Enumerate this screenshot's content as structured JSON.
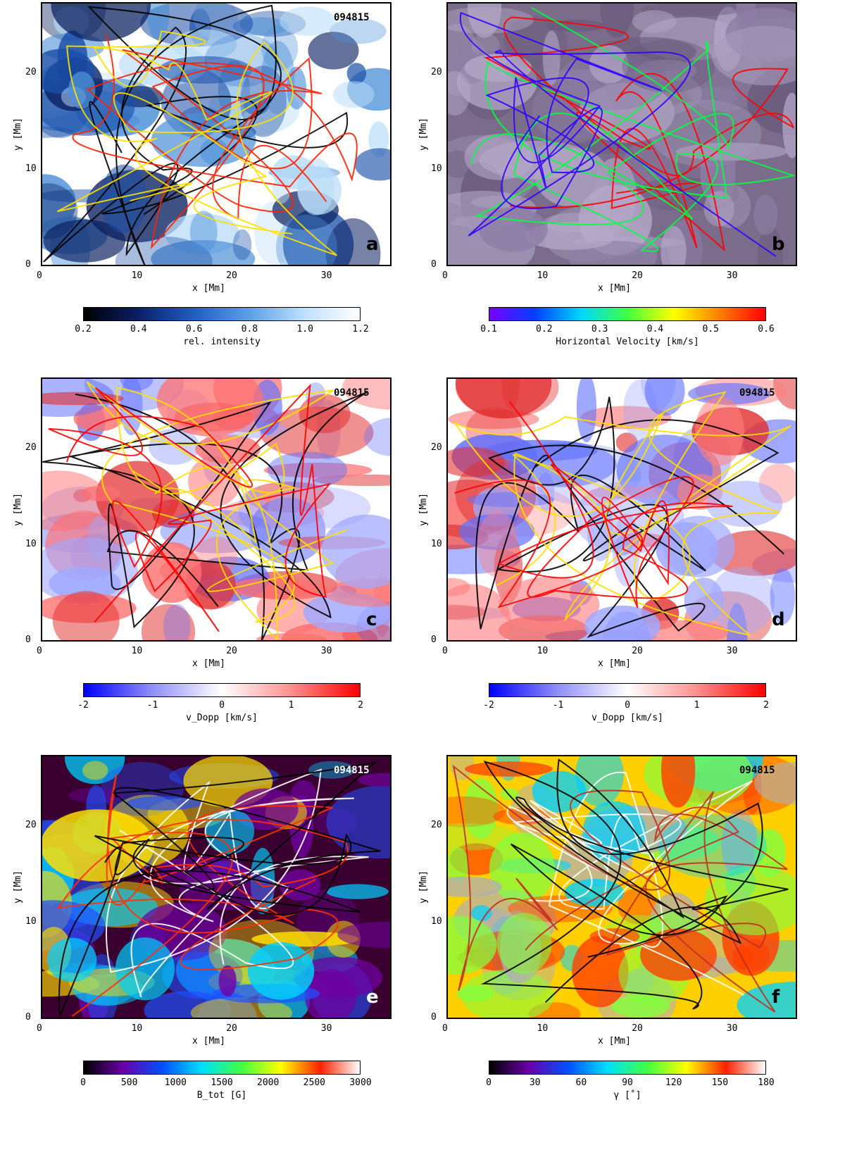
{
  "stamp": "094815",
  "panels": [
    {
      "letter": "a",
      "stamp": "094815",
      "xlabel": "x [Mm]",
      "ylabel": "y [Mm]",
      "xticks": [
        "0",
        "10",
        "20",
        "30"
      ],
      "yticks": [
        "0",
        "10",
        "20"
      ],
      "colorbar": {
        "label": "rel. intensity",
        "ticks": [
          "0.2",
          "0.4",
          "0.6",
          "0.8",
          "1.0",
          "1.2"
        ],
        "colors": [
          "#000000",
          "#0b1f6b",
          "#1f5fbf",
          "#5aa0e8",
          "#bfe0ff",
          "#ffffff"
        ]
      }
    },
    {
      "letter": "b",
      "stamp": "",
      "xlabel": "x  [Mm]",
      "ylabel": "y [Mm]",
      "xticks": [
        "0",
        "10",
        "20",
        "30"
      ],
      "yticks": [
        "0",
        "10",
        "20"
      ],
      "colorbar": {
        "label": "Horizontal Velocity   [km/s]",
        "ticks": [
          "0.1",
          "0.2",
          "0.3",
          "0.4",
          "0.5",
          "0.6"
        ],
        "colors": [
          "#7a00ff",
          "#0040ff",
          "#00d8ff",
          "#40ff40",
          "#ffff00",
          "#ff8000",
          "#ff0000"
        ]
      }
    },
    {
      "letter": "c",
      "stamp": "094815",
      "xlabel": "x [Mm]",
      "ylabel": "y [Mm]",
      "xticks": [
        "0",
        "10",
        "20",
        "30"
      ],
      "yticks": [
        "0",
        "10",
        "20"
      ],
      "colorbar": {
        "label": "v_Dopp   [km/s]",
        "ticks": [
          "-2",
          "-1",
          "0",
          "1",
          "2"
        ],
        "colors": [
          "#0000ff",
          "#9090ff",
          "#ffffff",
          "#ff9090",
          "#ff0000"
        ]
      }
    },
    {
      "letter": "d",
      "stamp": "094815",
      "xlabel": "x [Mm]",
      "ylabel": "y [Mm]",
      "xticks": [
        "0",
        "10",
        "20",
        "30"
      ],
      "yticks": [
        "0",
        "10",
        "20"
      ],
      "colorbar": {
        "label": "v_Dopp   [km/s]",
        "ticks": [
          "-2",
          "-1",
          "0",
          "1",
          "2"
        ],
        "colors": [
          "#0000ff",
          "#9090ff",
          "#ffffff",
          "#ff9090",
          "#ff0000"
        ]
      }
    },
    {
      "letter": "e",
      "stamp": "094815",
      "xlabel": "x [Mm]",
      "ylabel": "y [Mm]",
      "xticks": [
        "0",
        "10",
        "20",
        "30"
      ],
      "yticks": [
        "0",
        "10",
        "20"
      ],
      "colorbar": {
        "label": "B_tot [G]",
        "ticks": [
          "0",
          "500",
          "1000",
          "1500",
          "2000",
          "2500",
          "3000"
        ],
        "colors": [
          "#000000",
          "#6a00a8",
          "#0050ff",
          "#00e0ff",
          "#40ff40",
          "#ffff00",
          "#ff2000",
          "#ffffff"
        ]
      }
    },
    {
      "letter": "f",
      "stamp": "094815",
      "xlabel": "x [Mm]",
      "ylabel": "y [Mm]",
      "xticks": [
        "0",
        "10",
        "20",
        "30"
      ],
      "yticks": [
        "0",
        "10",
        "20"
      ],
      "colorbar": {
        "label": "γ [˚]",
        "ticks": [
          "0",
          "30",
          "60",
          "90",
          "120",
          "150",
          "180"
        ],
        "colors": [
          "#000000",
          "#6a00a8",
          "#0050ff",
          "#00e0ff",
          "#40ff40",
          "#ffff00",
          "#ff2000",
          "#ffffff"
        ]
      }
    }
  ]
}
